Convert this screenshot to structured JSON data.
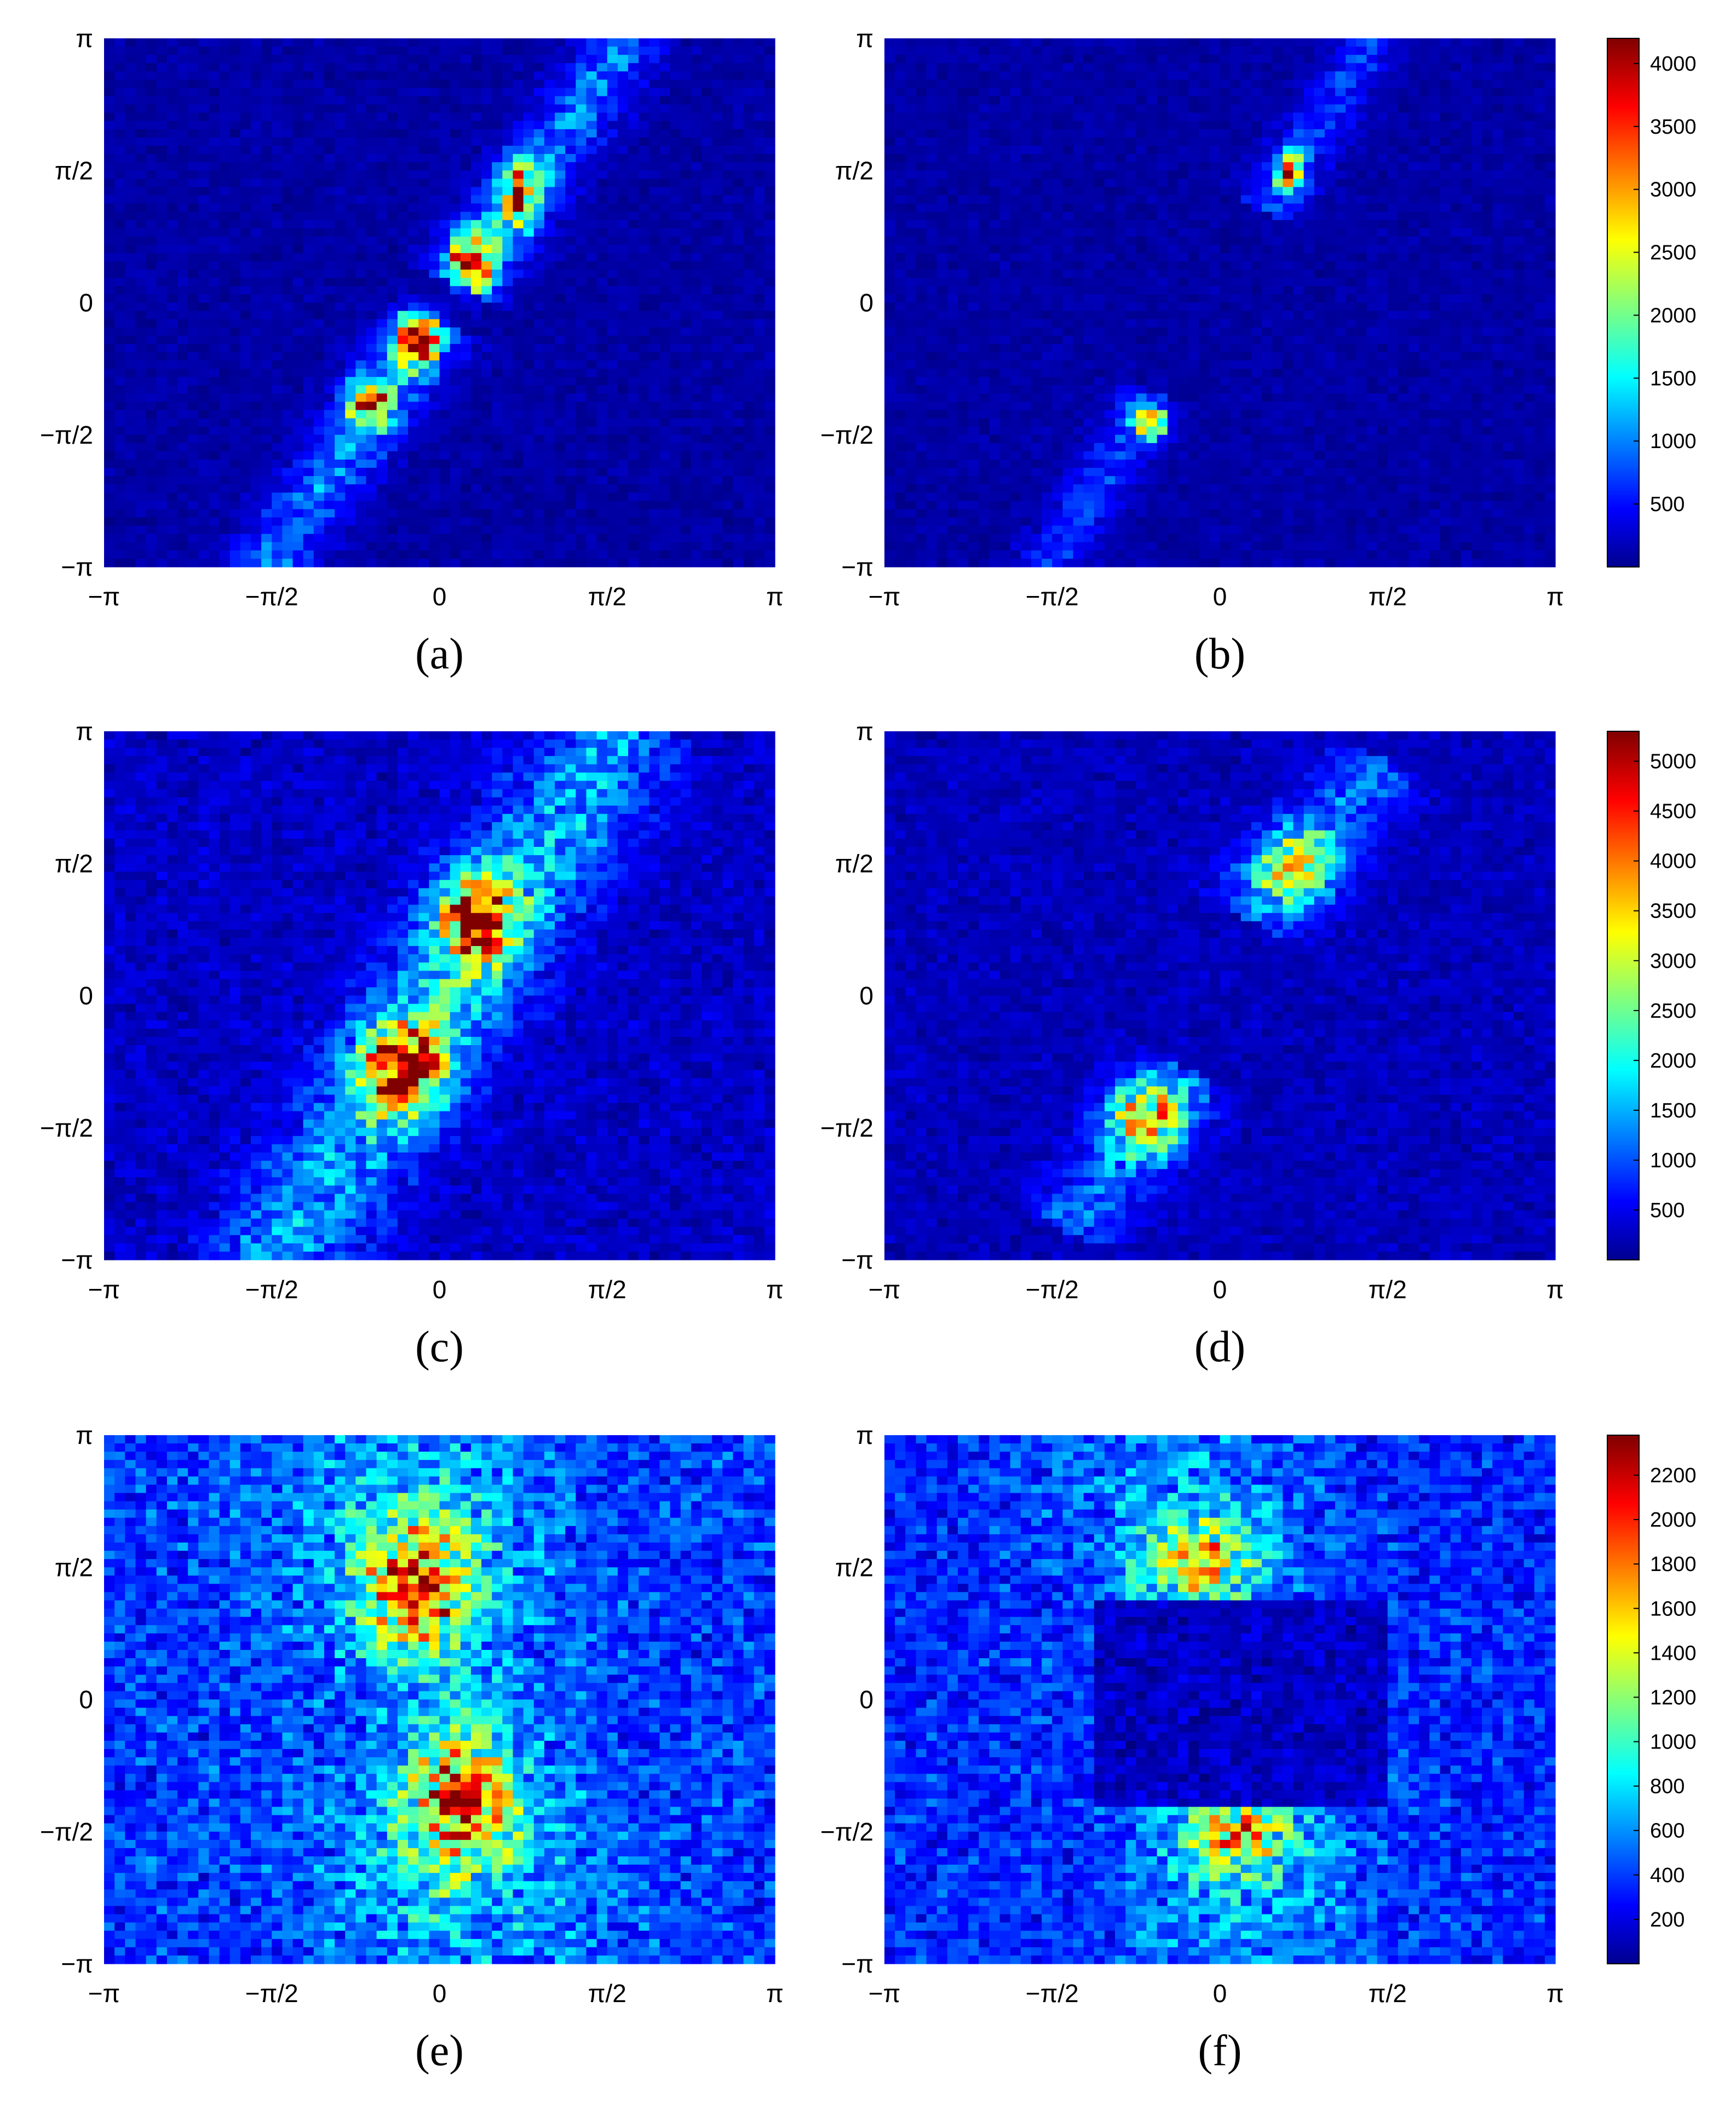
{
  "figure": {
    "colormap": "jet",
    "background": "#00008f",
    "rows": [
      {
        "colorbar": {
          "ticks": [
            500,
            1000,
            1500,
            2000,
            2500,
            3000,
            3500,
            4000
          ],
          "min": 0,
          "max": 4200
        },
        "panels": [
          "(a)",
          "(b)"
        ]
      },
      {
        "colorbar": {
          "ticks": [
            500,
            1000,
            1500,
            2000,
            2500,
            3000,
            3500,
            4000,
            4500,
            5000
          ],
          "min": 0,
          "max": 5300
        },
        "panels": [
          "(c)",
          "(d)"
        ]
      },
      {
        "colorbar": {
          "ticks": [
            200,
            400,
            600,
            800,
            1000,
            1200,
            1400,
            1600,
            1800,
            2000,
            2200
          ],
          "min": 0,
          "max": 2380
        },
        "panels": [
          "(e)",
          "(f)"
        ]
      }
    ]
  },
  "chart_data": [
    {
      "type": "heatmap",
      "panel": "(a)",
      "xlim": [
        -3.1416,
        3.1416
      ],
      "ylim": [
        -3.1416,
        3.1416
      ],
      "xticks": [
        "−π",
        "−π/2",
        "0",
        "π/2",
        "π"
      ],
      "yticks": [
        "π",
        "π/2",
        "0",
        "−π/2",
        "−π"
      ],
      "zlim": [
        0,
        4200
      ],
      "structure": "single diagonal band through the origin",
      "features": [
        {
          "shape": "band",
          "x1": -1.6,
          "y1": -3.1,
          "x2": 1.7,
          "y2": 3.0,
          "width": 0.25,
          "value": 1100,
          "gap": 0.18
        },
        {
          "shape": "blob",
          "x": 0.3,
          "y": 0.5,
          "sx": 0.14,
          "sy": 0.22,
          "value": 3300
        },
        {
          "shape": "blob",
          "x": 0.75,
          "y": 1.3,
          "sx": 0.12,
          "sy": 0.25,
          "value": 2600
        },
        {
          "shape": "blob",
          "x": -0.2,
          "y": -0.45,
          "sx": 0.12,
          "sy": 0.2,
          "value": 3700
        },
        {
          "shape": "blob",
          "x": -0.65,
          "y": -1.2,
          "sx": 0.13,
          "sy": 0.22,
          "value": 2800
        }
      ],
      "base": 150,
      "noise": 140
    },
    {
      "type": "heatmap",
      "panel": "(b)",
      "xlim": [
        -3.1416,
        3.1416
      ],
      "ylim": [
        -3.1416,
        3.1416
      ],
      "xticks": [
        "−π",
        "−π/2",
        "0",
        "π/2",
        "π"
      ],
      "yticks": [
        "π",
        "π/2",
        "0",
        "−π/2",
        "−π"
      ],
      "zlim": [
        0,
        4200
      ],
      "structure": "two compact hot spots on a faint diagonal band",
      "features": [
        {
          "shape": "band",
          "x1": -1.6,
          "y1": -3.1,
          "x2": 1.4,
          "y2": 3.1,
          "width": 0.2,
          "value": 700,
          "gap": 0.9
        },
        {
          "shape": "blob",
          "x": 0.65,
          "y": 1.55,
          "sx": 0.1,
          "sy": 0.14,
          "value": 2700
        },
        {
          "shape": "blob",
          "x": -0.65,
          "y": -1.45,
          "sx": 0.1,
          "sy": 0.14,
          "value": 2600
        }
      ],
      "base": 150,
      "noise": 120
    },
    {
      "type": "heatmap",
      "panel": "(c)",
      "xlim": [
        -3.1416,
        3.1416
      ],
      "ylim": [
        -3.1416,
        3.1416
      ],
      "xticks": [
        "−π",
        "−π/2",
        "0",
        "π/2",
        "π"
      ],
      "yticks": [
        "π",
        "π/2",
        "0",
        "−π/2",
        "−π"
      ],
      "zlim": [
        0,
        5300
      ],
      "structure": "wide diagonal band with two broad hot lobes",
      "features": [
        {
          "shape": "band",
          "x1": -1.5,
          "y1": -3.1,
          "x2": 1.6,
          "y2": 3.0,
          "width": 0.45,
          "value": 1500,
          "gap": 0.0
        },
        {
          "shape": "blob",
          "x": 0.35,
          "y": 0.9,
          "sx": 0.25,
          "sy": 0.35,
          "value": 3800
        },
        {
          "shape": "blob",
          "x": -0.35,
          "y": -0.85,
          "sx": 0.25,
          "sy": 0.35,
          "value": 4100
        }
      ],
      "base": 350,
      "noise": 300
    },
    {
      "type": "heatmap",
      "panel": "(d)",
      "xlim": [
        -3.1416,
        3.1416
      ],
      "ylim": [
        -3.1416,
        3.1416
      ],
      "xticks": [
        "−π",
        "−π/2",
        "0",
        "π/2",
        "π"
      ],
      "yticks": [
        "π",
        "π/2",
        "0",
        "−π/2",
        "−π"
      ],
      "zlim": [
        0,
        5300
      ],
      "structure": "two diffuse hot spots",
      "features": [
        {
          "shape": "band",
          "x1": 0.3,
          "y1": 1.0,
          "x2": 1.5,
          "y2": 2.7,
          "width": 0.3,
          "value": 900,
          "gap": 0.0
        },
        {
          "shape": "band",
          "x1": -1.4,
          "y1": -2.7,
          "x2": -0.3,
          "y2": -1.0,
          "width": 0.3,
          "value": 900,
          "gap": 0.0
        },
        {
          "shape": "blob",
          "x": 0.7,
          "y": 1.5,
          "sx": 0.25,
          "sy": 0.3,
          "value": 2600
        },
        {
          "shape": "blob",
          "x": -0.7,
          "y": -1.45,
          "sx": 0.25,
          "sy": 0.3,
          "value": 2600
        }
      ],
      "base": 300,
      "noise": 220
    },
    {
      "type": "heatmap",
      "panel": "(e)",
      "xlim": [
        -3.1416,
        3.1416
      ],
      "ylim": [
        -3.1416,
        3.1416
      ],
      "xticks": [
        "−π",
        "−π/2",
        "0",
        "π/2",
        "π"
      ],
      "yticks": [
        "π",
        "π/2",
        "0",
        "−π/2",
        "−π"
      ],
      "zlim": [
        0,
        2380
      ],
      "structure": "two vertical lobes around x = 0 over a noisy background",
      "features": [
        {
          "shape": "blob",
          "x": -0.2,
          "y": 1.3,
          "sx": 0.35,
          "sy": 0.55,
          "value": 1300
        },
        {
          "shape": "blob",
          "x": 0.2,
          "y": -1.2,
          "sx": 0.35,
          "sy": 0.55,
          "value": 1300
        },
        {
          "shape": "blob",
          "x": -0.2,
          "y": 2.0,
          "sx": 0.9,
          "sy": 1.2,
          "value": 350
        },
        {
          "shape": "blob",
          "x": 0.2,
          "y": -2.0,
          "sx": 0.9,
          "sy": 1.2,
          "value": 350
        }
      ],
      "base": 420,
      "noise": 230
    },
    {
      "type": "heatmap",
      "panel": "(f)",
      "xlim": [
        -3.1416,
        3.1416
      ],
      "ylim": [
        -3.1416,
        3.1416
      ],
      "xticks": [
        "−π",
        "−π/2",
        "0",
        "π/2",
        "π"
      ],
      "yticks": [
        "π",
        "π/2",
        "0",
        "−π/2",
        "−π"
      ],
      "zlim": [
        0,
        2380
      ],
      "structure": "noisy background with a dark central square and two hot spots",
      "features": [
        {
          "shape": "blob",
          "x": -0.2,
          "y": 1.6,
          "sx": 0.35,
          "sy": 0.35,
          "value": 1000
        },
        {
          "shape": "blob",
          "x": 0.15,
          "y": -1.6,
          "sx": 0.35,
          "sy": 0.35,
          "value": 1000
        },
        {
          "shape": "blob",
          "x": -0.3,
          "y": 2.2,
          "sx": 0.8,
          "sy": 0.9,
          "value": 300
        },
        {
          "shape": "blob",
          "x": 0.2,
          "y": -2.2,
          "sx": 0.8,
          "sy": 0.9,
          "value": 300
        }
      ],
      "hole": {
        "x1": -1.2,
        "x2": 1.55,
        "y1": -1.3,
        "y2": 1.2,
        "value": 150
      },
      "base": 380,
      "noise": 200
    }
  ]
}
